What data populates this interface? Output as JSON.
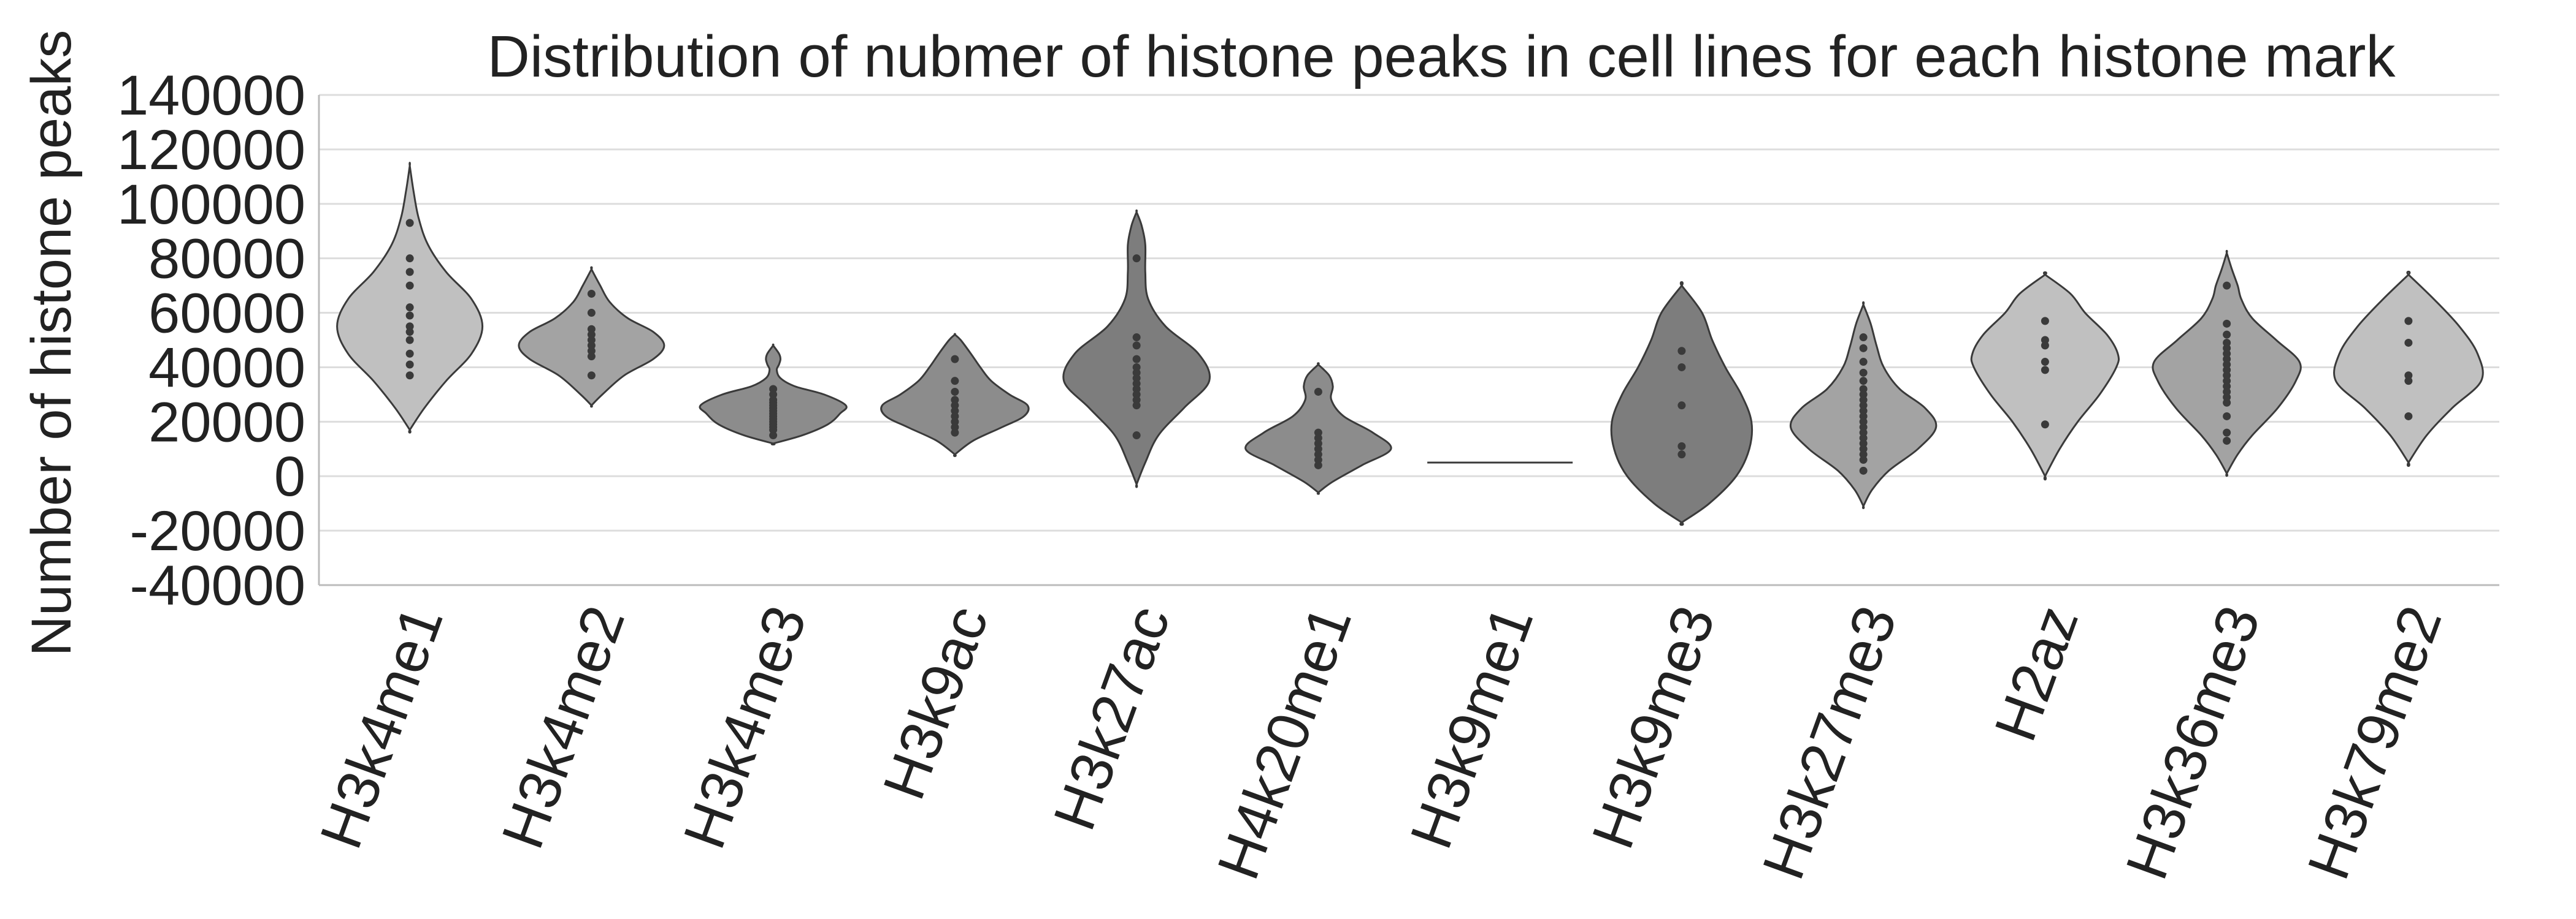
{
  "chart_data": {
    "type": "violin",
    "title": "Distribution of nubmer of histone peaks in cell lines for each histone mark",
    "xlabel": "",
    "ylabel": "Number of histone peaks",
    "ylim": [
      -40000,
      140000
    ],
    "yticks": [
      "-40000",
      "-20000",
      "0",
      "20000",
      "40000",
      "60000",
      "80000",
      "100000",
      "120000",
      "140000"
    ],
    "grid": true,
    "legend": "none",
    "categories": [
      "H3k4me1",
      "H3k4me2",
      "H3k4me3",
      "H3k9ac",
      "H3k27ac",
      "H4k20me1",
      "H3k9me1",
      "H3k9me3",
      "H3k27me3",
      "H2az",
      "H3k36me3",
      "H3k79me2"
    ],
    "colors": [
      "#c0c0c0",
      "#a3a3a3",
      "#8c8c8c",
      "#8c8c8c",
      "#7d7d7d",
      "#8c8c8c",
      "#ffffff",
      "#7d7d7d",
      "#a3a3a3",
      "#c0c0c0",
      "#a3a3a3",
      "#c0c0c0"
    ],
    "series": [
      {
        "values": [
          93000,
          80000,
          75000,
          70000,
          62000,
          59000,
          55000,
          53000,
          50000,
          45000,
          41000,
          37000
        ],
        "profile": [
          [
            17000,
            0
          ],
          [
            25000,
            0.2
          ],
          [
            35000,
            0.5
          ],
          [
            45000,
            0.85
          ],
          [
            55000,
            1.0
          ],
          [
            65000,
            0.85
          ],
          [
            75000,
            0.5
          ],
          [
            85000,
            0.25
          ],
          [
            95000,
            0.12
          ],
          [
            105000,
            0.05
          ],
          [
            114000,
            0
          ]
        ]
      },
      {
        "values": [
          67000,
          60000,
          54000,
          52000,
          50000,
          48000,
          46000,
          44000,
          37000
        ],
        "profile": [
          [
            26000,
            0
          ],
          [
            30000,
            0.15
          ],
          [
            37000,
            0.45
          ],
          [
            43000,
            0.85
          ],
          [
            48000,
            1.0
          ],
          [
            53000,
            0.85
          ],
          [
            58000,
            0.5
          ],
          [
            64000,
            0.25
          ],
          [
            70000,
            0.12
          ],
          [
            76000,
            0
          ]
        ]
      },
      {
        "values": [
          32000,
          30000,
          28000,
          27000,
          26000,
          25000,
          24000,
          23000,
          22000,
          21000,
          20000,
          19000,
          18000,
          17000,
          15000
        ],
        "profile": [
          [
            12000,
            0
          ],
          [
            15000,
            0.4
          ],
          [
            19000,
            0.75
          ],
          [
            23000,
            0.92
          ],
          [
            26000,
            1.0
          ],
          [
            30000,
            0.7
          ],
          [
            33000,
            0.3
          ],
          [
            36000,
            0.1
          ],
          [
            39000,
            0.05
          ],
          [
            41000,
            0.08
          ],
          [
            43000,
            0.1
          ],
          [
            45000,
            0.08
          ],
          [
            48000,
            0
          ]
        ]
      },
      {
        "values": [
          43000,
          35000,
          31000,
          28000,
          26000,
          24000,
          22000,
          20000,
          18000,
          16000
        ],
        "profile": [
          [
            8000,
            0
          ],
          [
            13000,
            0.25
          ],
          [
            18000,
            0.65
          ],
          [
            22000,
            0.95
          ],
          [
            26000,
            1.0
          ],
          [
            30000,
            0.75
          ],
          [
            35000,
            0.5
          ],
          [
            40000,
            0.35
          ],
          [
            45000,
            0.22
          ],
          [
            50000,
            0.08
          ],
          [
            52000,
            0
          ]
        ]
      },
      {
        "values": [
          80000,
          51000,
          48000,
          43000,
          40000,
          38000,
          36000,
          34000,
          32000,
          30000,
          28000,
          26000,
          15000
        ],
        "profile": [
          [
            -3000,
            0
          ],
          [
            5000,
            0.12
          ],
          [
            15000,
            0.3
          ],
          [
            25000,
            0.65
          ],
          [
            35000,
            1.0
          ],
          [
            45000,
            0.85
          ],
          [
            55000,
            0.4
          ],
          [
            65000,
            0.16
          ],
          [
            75000,
            0.12
          ],
          [
            85000,
            0.12
          ],
          [
            92000,
            0.07
          ],
          [
            97000,
            0
          ]
        ]
      },
      {
        "values": [
          31000,
          16000,
          14000,
          12000,
          10000,
          8000,
          6000,
          4000
        ],
        "profile": [
          [
            -6000,
            0
          ],
          [
            -2000,
            0.2
          ],
          [
            4000,
            0.6
          ],
          [
            10000,
            1.0
          ],
          [
            16000,
            0.75
          ],
          [
            22000,
            0.35
          ],
          [
            28000,
            0.18
          ],
          [
            33000,
            0.2
          ],
          [
            37000,
            0.15
          ],
          [
            41000,
            0
          ]
        ]
      },
      {
        "values": [
          5000
        ],
        "profile": [
          [
            5000,
            1.0
          ]
        ]
      },
      {
        "values": [
          46000,
          40000,
          26000,
          11000,
          8000
        ],
        "profile": [
          [
            -17000,
            0
          ],
          [
            -10000,
            0.38
          ],
          [
            0,
            0.75
          ],
          [
            10000,
            0.93
          ],
          [
            20000,
            0.96
          ],
          [
            30000,
            0.82
          ],
          [
            40000,
            0.6
          ],
          [
            50000,
            0.42
          ],
          [
            60000,
            0.28
          ],
          [
            70000,
            0
          ]
        ]
      },
      {
        "values": [
          51000,
          47000,
          42000,
          38000,
          35000,
          32000,
          30000,
          28000,
          26000,
          24000,
          22000,
          20000,
          18000,
          16000,
          14000,
          12000,
          10000,
          8000,
          6000,
          2000
        ],
        "profile": [
          [
            -11000,
            0
          ],
          [
            -5000,
            0.12
          ],
          [
            2000,
            0.35
          ],
          [
            10000,
            0.75
          ],
          [
            18000,
            1.0
          ],
          [
            25000,
            0.85
          ],
          [
            32000,
            0.5
          ],
          [
            40000,
            0.28
          ],
          [
            48000,
            0.18
          ],
          [
            56000,
            0.1
          ],
          [
            63000,
            0
          ]
        ]
      },
      {
        "values": [
          57000,
          50000,
          48000,
          42000,
          39000,
          19000
        ],
        "profile": [
          [
            0,
            0
          ],
          [
            10000,
            0.2
          ],
          [
            20000,
            0.45
          ],
          [
            30000,
            0.75
          ],
          [
            40000,
            0.98
          ],
          [
            45000,
            1.0
          ],
          [
            52000,
            0.85
          ],
          [
            60000,
            0.55
          ],
          [
            67000,
            0.35
          ],
          [
            74000,
            0
          ]
        ]
      },
      {
        "values": [
          70000,
          56000,
          52000,
          49000,
          47000,
          45000,
          43000,
          41000,
          39000,
          37000,
          35000,
          33000,
          31000,
          29000,
          27000,
          22000,
          16000,
          13000
        ],
        "profile": [
          [
            1000,
            0
          ],
          [
            8000,
            0.15
          ],
          [
            15000,
            0.35
          ],
          [
            25000,
            0.7
          ],
          [
            35000,
            0.95
          ],
          [
            42000,
            1.0
          ],
          [
            50000,
            0.68
          ],
          [
            58000,
            0.35
          ],
          [
            65000,
            0.2
          ],
          [
            70000,
            0.15
          ],
          [
            76000,
            0.07
          ],
          [
            82000,
            0
          ]
        ]
      },
      {
        "values": [
          57000,
          49000,
          37000,
          35000,
          22000
        ],
        "profile": [
          [
            5000,
            0
          ],
          [
            15000,
            0.25
          ],
          [
            25000,
            0.6
          ],
          [
            35000,
            1.0
          ],
          [
            45000,
            0.95
          ],
          [
            55000,
            0.7
          ],
          [
            65000,
            0.35
          ],
          [
            74000,
            0
          ]
        ]
      }
    ]
  }
}
